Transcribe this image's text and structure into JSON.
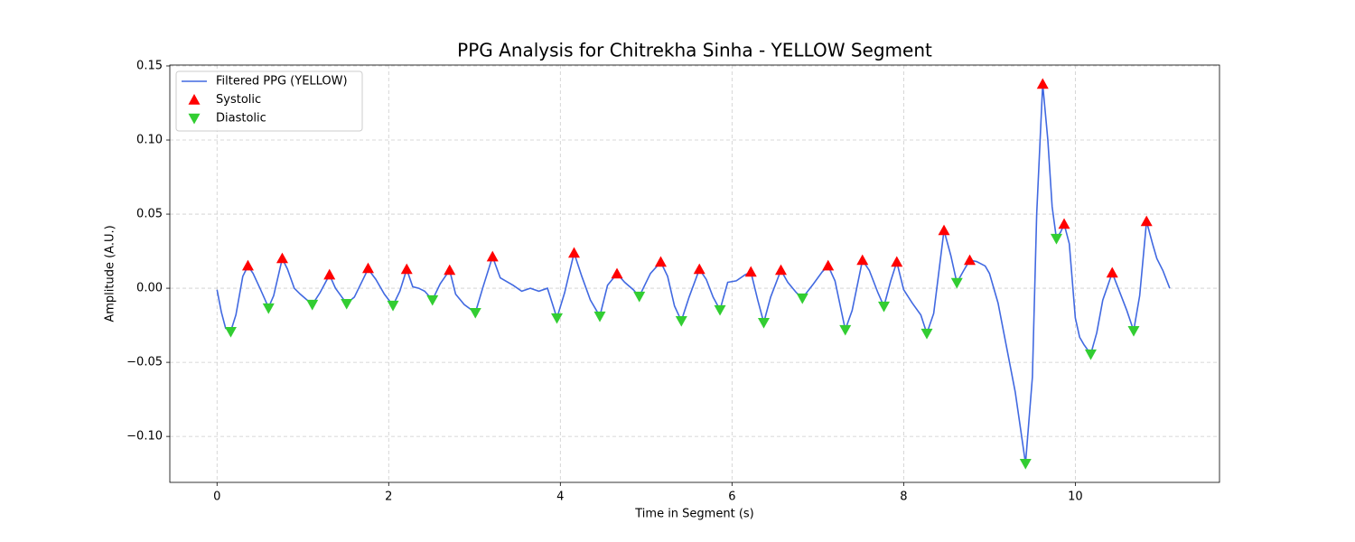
{
  "chart_data": {
    "type": "line",
    "title": "PPG Analysis for Chitrekha Sinha - YELLOW Segment",
    "xlabel": "Time in Segment (s)",
    "ylabel": "Amplitude (A.U.)",
    "xlim": [
      -0.55,
      11.68
    ],
    "ylim": [
      -0.131,
      0.1506
    ],
    "xticks": [
      0,
      2,
      4,
      6,
      8,
      10
    ],
    "yticks": [
      {
        "value": -0.1,
        "label": "−0.10"
      },
      {
        "value": -0.05,
        "label": "−0.05"
      },
      {
        "value": 0.0,
        "label": "0.00"
      },
      {
        "value": 0.05,
        "label": "0.05"
      },
      {
        "value": 0.1,
        "label": "0.10"
      },
      {
        "value": 0.15,
        "label": "0.15"
      }
    ],
    "grid": true,
    "legend": "upper left",
    "series": [
      {
        "name": "Filtered PPG (YELLOW)",
        "type": "line",
        "color": "#4169e1",
        "x": [
          0,
          0.05,
          0.1,
          0.16,
          0.22,
          0.3,
          0.36,
          0.42,
          0.5,
          0.6,
          0.66,
          0.76,
          0.82,
          0.9,
          0.97,
          1.11,
          1.2,
          1.31,
          1.38,
          1.51,
          1.6,
          1.76,
          1.85,
          1.95,
          2.05,
          2.13,
          2.21,
          2.28,
          2.35,
          2.42,
          2.51,
          2.6,
          2.71,
          2.78,
          2.88,
          3.01,
          3.1,
          3.21,
          3.3,
          3.45,
          3.55,
          3.65,
          3.75,
          3.85,
          3.96,
          4.05,
          4.16,
          4.25,
          4.35,
          4.46,
          4.55,
          4.66,
          4.75,
          4.85,
          4.92,
          5.05,
          5.17,
          5.25,
          5.33,
          5.41,
          5.5,
          5.62,
          5.7,
          5.78,
          5.86,
          5.95,
          6.05,
          6.15,
          6.22,
          6.3,
          6.37,
          6.45,
          6.57,
          6.65,
          6.75,
          6.82,
          6.95,
          7.05,
          7.12,
          7.2,
          7.32,
          7.4,
          7.52,
          7.6,
          7.7,
          7.77,
          7.85,
          7.92,
          8.0,
          8.1,
          8.2,
          8.27,
          8.35,
          8.47,
          8.55,
          8.62,
          8.7,
          8.77,
          8.85,
          8.95,
          9.0,
          9.1,
          9.2,
          9.3,
          9.35,
          9.42,
          9.5,
          9.55,
          9.62,
          9.68,
          9.73,
          9.78,
          9.83,
          9.87,
          9.93,
          10.0,
          10.05,
          10.1,
          10.18,
          10.25,
          10.32,
          10.43,
          10.5,
          10.6,
          10.68,
          10.75,
          10.83,
          10.9,
          10.95,
          11.02,
          11.1
        ],
        "values": [
          -0.001,
          -0.016,
          -0.027,
          -0.029,
          -0.018,
          0.008,
          0.015,
          0.01,
          0.0,
          -0.013,
          -0.005,
          0.02,
          0.013,
          0.0,
          -0.004,
          -0.011,
          -0.003,
          0.009,
          0.0,
          -0.0104,
          -0.006,
          0.013,
          0.006,
          -0.004,
          -0.0116,
          -0.002,
          0.0128,
          0.001,
          0.0,
          -0.002,
          -0.0079,
          0.003,
          0.0122,
          -0.004,
          -0.011,
          -0.0165,
          0.001,
          0.0213,
          0.007,
          0.002,
          -0.002,
          0.0,
          -0.002,
          0.0,
          -0.0201,
          -0.003,
          0.0238,
          0.008,
          -0.008,
          -0.0189,
          0.002,
          0.0098,
          0.004,
          -0.001,
          -0.0055,
          0.01,
          0.0177,
          0.008,
          -0.012,
          -0.022,
          -0.006,
          0.0128,
          0.006,
          -0.006,
          -0.0146,
          0.004,
          0.005,
          0.009,
          0.011,
          -0.008,
          -0.0232,
          -0.006,
          0.0122,
          0.004,
          -0.003,
          -0.0067,
          0.003,
          0.011,
          0.0152,
          0.005,
          -0.028,
          -0.015,
          0.0189,
          0.012,
          -0.003,
          -0.0122,
          0.005,
          0.0177,
          -0.001,
          -0.01,
          -0.018,
          -0.0305,
          -0.017,
          0.039,
          0.022,
          0.0037,
          0.012,
          0.0189,
          0.018,
          0.015,
          0.01,
          -0.01,
          -0.04,
          -0.07,
          -0.09,
          -0.1183,
          -0.06,
          0.05,
          0.1378,
          0.1,
          0.055,
          0.0335,
          0.038,
          0.0433,
          0.03,
          -0.02,
          -0.033,
          -0.038,
          -0.0445,
          -0.03,
          -0.008,
          0.0104,
          0.0,
          -0.015,
          -0.0287,
          -0.005,
          0.0451,
          0.03,
          0.02,
          0.012,
          0.0
        ]
      },
      {
        "name": "Systolic",
        "type": "scatter",
        "marker": "triangle-up",
        "color": "#ff0000",
        "x": [
          0.36,
          0.76,
          1.31,
          1.76,
          2.21,
          2.71,
          3.21,
          4.16,
          4.66,
          5.17,
          5.62,
          6.22,
          6.57,
          7.12,
          7.52,
          7.92,
          8.47,
          8.77,
          9.62,
          9.87,
          10.43,
          10.83
        ],
        "values": [
          0.0152,
          0.0201,
          0.0091,
          0.0134,
          0.0128,
          0.0122,
          0.0213,
          0.0238,
          0.0098,
          0.0177,
          0.0128,
          0.011,
          0.0122,
          0.0152,
          0.0189,
          0.0177,
          0.039,
          0.0189,
          0.1378,
          0.0433,
          0.0104,
          0.0451
        ]
      },
      {
        "name": "Diastolic",
        "type": "scatter",
        "marker": "triangle-down",
        "color": "#32cd32",
        "x": [
          0.16,
          0.6,
          1.11,
          1.51,
          2.05,
          2.51,
          3.01,
          3.96,
          4.46,
          4.92,
          5.41,
          5.86,
          6.37,
          6.82,
          7.32,
          7.77,
          8.27,
          8.62,
          9.42,
          9.78,
          10.18,
          10.68
        ],
        "values": [
          -0.0293,
          -0.0134,
          -0.011,
          -0.0104,
          -0.0116,
          -0.0079,
          -0.0165,
          -0.0201,
          -0.0189,
          -0.0055,
          -0.022,
          -0.0146,
          -0.0232,
          -0.0067,
          -0.028,
          -0.0122,
          -0.0305,
          0.0037,
          -0.1183,
          0.0335,
          -0.0445,
          -0.0287
        ]
      }
    ]
  }
}
